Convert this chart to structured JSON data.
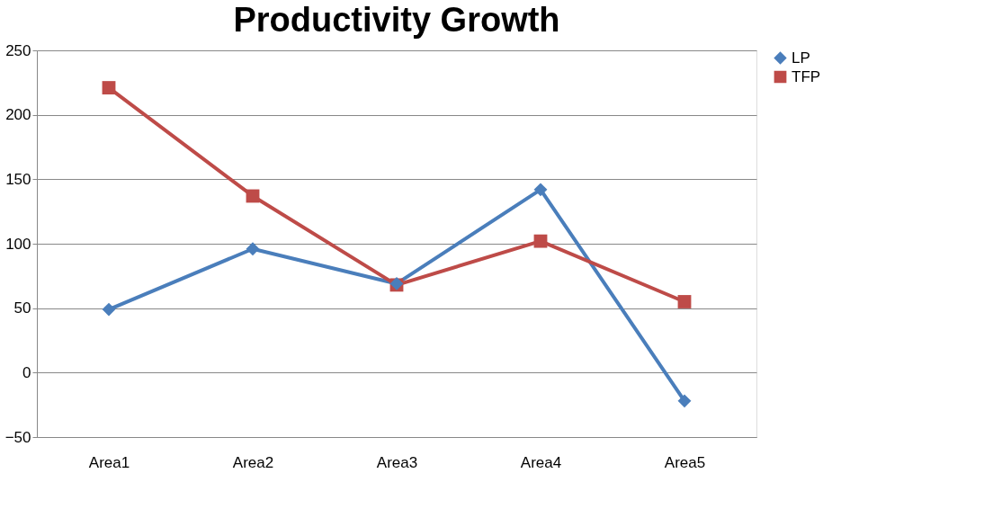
{
  "chart_data": {
    "type": "line",
    "title": "Productivity Growth",
    "categories": [
      "Area1",
      "Area2",
      "Area3",
      "Area4",
      "Area5"
    ],
    "series": [
      {
        "name": "LP",
        "color": "#4a7ebb",
        "values": [
          49,
          96,
          69,
          142,
          -22
        ],
        "marker": "diamond"
      },
      {
        "name": "TFP",
        "color": "#be4b48",
        "values": [
          221,
          137,
          68,
          102,
          55
        ],
        "marker": "square"
      }
    ],
    "ylim": [
      -50,
      250
    ],
    "yticks": [
      -50,
      0,
      50,
      100,
      150,
      200,
      250
    ],
    "grid": "y",
    "legend": "right",
    "line_style": "solid"
  }
}
